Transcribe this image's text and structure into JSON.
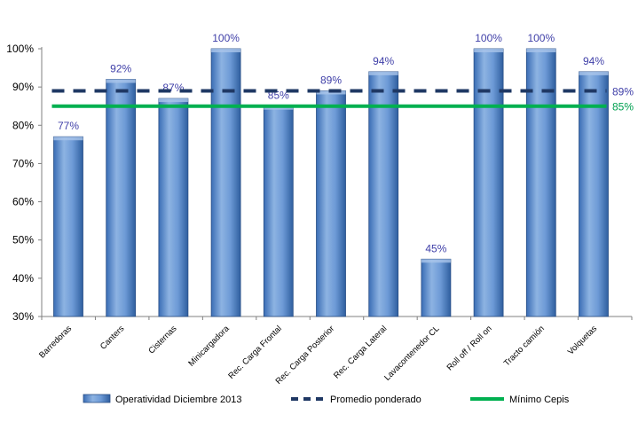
{
  "chart_data": {
    "type": "bar",
    "categories": [
      "Barredoras",
      "Canters",
      "Cisternas",
      "Minicargadora",
      "Rec. Carga Frontal",
      "Rec. Carga Posterior",
      "Rec. Carga Lateral",
      "Lavacontenedor CL",
      "Roll off / Roll on",
      "Tracto camión",
      "Volquetas"
    ],
    "series": [
      {
        "name": "Operatividad Diciembre 2013",
        "values": [
          77,
          92,
          87,
          100,
          85,
          89,
          94,
          45,
          100,
          100,
          94
        ],
        "color": "#4f81bd"
      }
    ],
    "value_labels": [
      "77%",
      "92%",
      "87%",
      "100%",
      "85%",
      "89%",
      "94%",
      "45%",
      "100%",
      "100%",
      "94%"
    ],
    "reference_lines": [
      {
        "name": "Promedio ponderado",
        "value": 89,
        "label": "89%",
        "style": "dashed",
        "color": "#1f3864",
        "label_color": "#3f3fa8"
      },
      {
        "name": "Mínimo Cepis",
        "value": 85,
        "label": "85%",
        "style": "solid",
        "color": "#00b050",
        "label_color": "#00a050"
      }
    ],
    "ylim": [
      30,
      100
    ],
    "yticks": [
      30,
      40,
      50,
      60,
      70,
      80,
      90,
      100
    ],
    "ytick_labels": [
      "30%",
      "40%",
      "50%",
      "60%",
      "70%",
      "80%",
      "90%",
      "100%"
    ],
    "grid": false,
    "legend_position": "bottom"
  }
}
